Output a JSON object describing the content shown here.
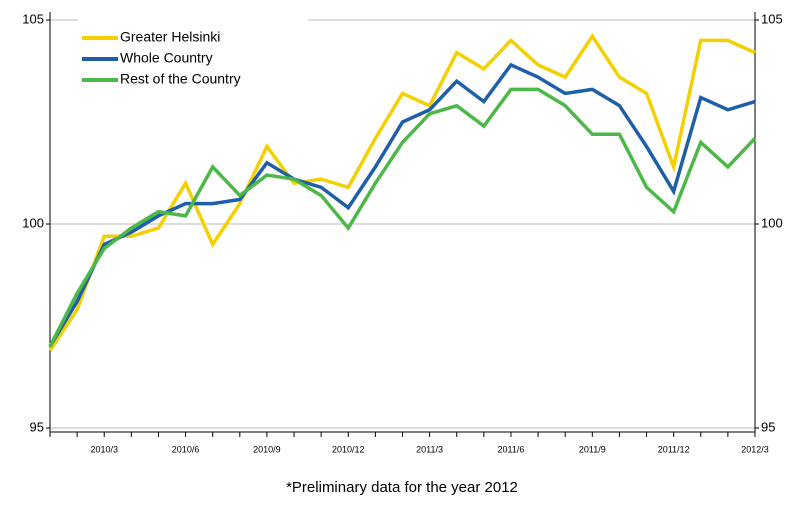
{
  "chart_data": {
    "type": "line",
    "note": "*Preliminary data for the year 2012",
    "categories": [
      null,
      null,
      "2010/3",
      null,
      null,
      "2010/6",
      null,
      null,
      "2010/9",
      null,
      null,
      "2010/12",
      null,
      null,
      "2011/3",
      null,
      null,
      "2011/6",
      null,
      null,
      "2011/9",
      null,
      null,
      "2011/12",
      null,
      null,
      "2012/3"
    ],
    "series": [
      {
        "name": "Greater Helsinki",
        "color": "#f5d000",
        "values": [
          96.9,
          97.9,
          99.7,
          99.7,
          99.9,
          101.0,
          99.5,
          100.5,
          101.9,
          101.0,
          101.1,
          100.9,
          102.1,
          103.2,
          102.9,
          104.2,
          103.8,
          104.5,
          103.9,
          103.6,
          104.6,
          103.6,
          103.2,
          101.4,
          104.5,
          104.5,
          104.2
        ]
      },
      {
        "name": "Whole Country",
        "color": "#1f5fa8",
        "values": [
          97.0,
          98.1,
          99.5,
          99.8,
          100.2,
          100.5,
          100.5,
          100.6,
          101.5,
          101.1,
          100.9,
          100.4,
          101.4,
          102.5,
          102.8,
          103.5,
          103.0,
          103.9,
          103.6,
          103.2,
          103.3,
          102.9,
          101.9,
          100.8,
          103.1,
          102.8,
          103.0
        ]
      },
      {
        "name": "Rest of the Country",
        "color": "#4cb848",
        "values": [
          97.0,
          98.3,
          99.4,
          99.9,
          100.3,
          100.2,
          101.4,
          100.7,
          101.2,
          101.1,
          100.7,
          99.9,
          101.0,
          102.0,
          102.7,
          102.9,
          102.4,
          103.3,
          103.3,
          102.9,
          102.2,
          102.2,
          100.9,
          100.3,
          102.0,
          101.4,
          102.1
        ]
      }
    ],
    "ylim": [
      95,
      105
    ],
    "yticks": [
      95,
      100,
      105
    ],
    "y2lim": [
      95,
      105
    ],
    "y2ticks": [
      95,
      100,
      105
    ],
    "grid": true,
    "legend": "upper left"
  }
}
